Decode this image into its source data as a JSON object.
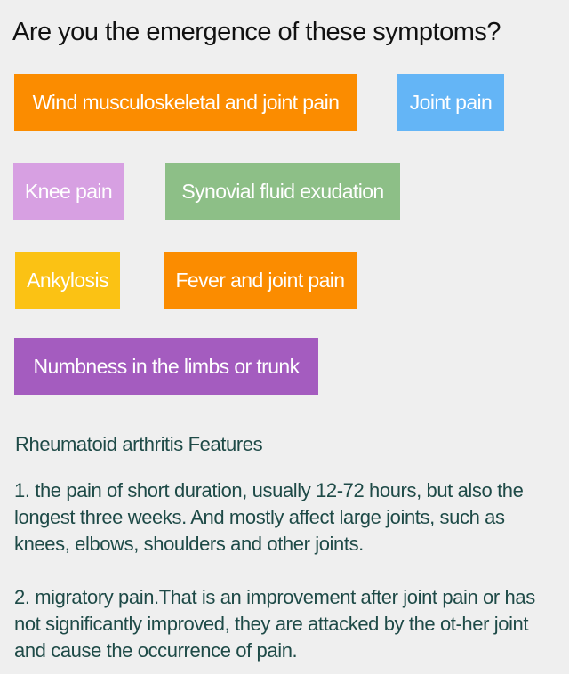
{
  "heading": "Are you the emergence of these symptoms?",
  "symptoms": [
    {
      "label": "Wind musculoskeletal and joint pain",
      "color": "#fb8c00"
    },
    {
      "label": "Joint pain",
      "color": "#64b5f6"
    },
    {
      "label": "Knee pain",
      "color": "#d7a0e2"
    },
    {
      "label": "Synovial fluid exudation",
      "color": "#8dbf87"
    },
    {
      "label": "Ankylosis",
      "color": "#fbc214"
    },
    {
      "label": "Fever and joint pain",
      "color": "#fb8c00"
    },
    {
      "label": "Numbness in the limbs or trunk",
      "color": "#a45cbf"
    }
  ],
  "features": {
    "title": "Rheumatoid arthritis Features",
    "points": [
      "1.  the pain of short duration, usually 12-72 hours, but also the longest three weeks. And mostly affect large joints, such as knees, elbows, shoulders and other joints.",
      "2. migratory pain.That is an improvement after joint pain or has not significantly improved, they are attacked by the ot-her joint and cause the occurrence of pain."
    ]
  },
  "colors": {
    "background": "#efefef",
    "heading_text": "#111111",
    "body_text": "#1e4a47"
  }
}
